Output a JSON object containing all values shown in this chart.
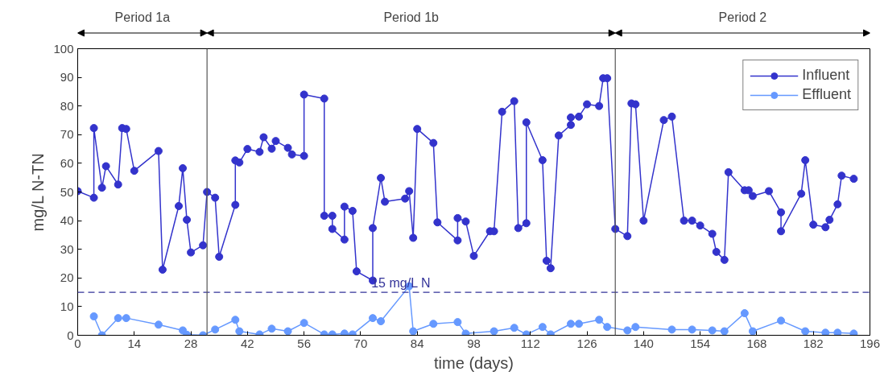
{
  "chart_data": {
    "type": "line",
    "xlabel": "time (days)",
    "ylabel": "mg/L N-TN",
    "series": [
      {
        "name": "Influent",
        "color": "#3333cc",
        "x": [
          0,
          4,
          4,
          6,
          7,
          10,
          11,
          12,
          14,
          20,
          21,
          25,
          26,
          27,
          28,
          31,
          32,
          34,
          35,
          39,
          39,
          40,
          42,
          45,
          46,
          48,
          49,
          52,
          53,
          56,
          56,
          61,
          61,
          63,
          63,
          66,
          66,
          68,
          69,
          73,
          73,
          75,
          76,
          81,
          82,
          83,
          84,
          88,
          89,
          94,
          94,
          96,
          98,
          102,
          103,
          105,
          108,
          109,
          111,
          111,
          115,
          116,
          117,
          119,
          122,
          122,
          124,
          126,
          129,
          130,
          131,
          133,
          136,
          137,
          138,
          140,
          145,
          147,
          150,
          152,
          154,
          157,
          158,
          160,
          161,
          165,
          166,
          167,
          171,
          174,
          174,
          179,
          180,
          182,
          185,
          186,
          188,
          189,
          192
        ],
        "values": [
          50.3,
          48,
          72.3,
          51.5,
          59,
          52.6,
          72.3,
          72,
          57.4,
          64.3,
          22.9,
          45.1,
          58.3,
          40.3,
          28.9,
          31.4,
          50,
          48,
          27.4,
          45.5,
          61,
          60.3,
          65,
          64,
          69.1,
          65.1,
          67.8,
          65.4,
          63.1,
          62.6,
          84,
          82.6,
          41.7,
          41.7,
          37.1,
          33.4,
          44.9,
          43.4,
          22.3,
          19.1,
          37.4,
          54.9,
          46.6,
          47.7,
          50.3,
          34,
          72,
          67.1,
          39.4,
          33.1,
          40.9,
          39.7,
          27.7,
          36.3,
          36.3,
          78,
          81.7,
          37.4,
          39.1,
          74.3,
          61.1,
          26,
          23.4,
          69.7,
          73.4,
          76,
          76.3,
          80.6,
          80,
          89.7,
          89.7,
          37.1,
          34.6,
          80.9,
          80.6,
          40,
          75.1,
          76.3,
          40,
          40,
          38.3,
          35.4,
          29.1,
          26.3,
          56.9,
          50.6,
          50.6,
          48.6,
          50.3,
          42.9,
          36.3,
          49.4,
          61.1,
          38.6,
          37.7,
          40.3,
          45.7,
          55.7,
          54.6
        ]
      },
      {
        "name": "Effluent",
        "color": "#6699ff",
        "x": [
          4,
          6,
          10,
          12,
          20,
          26,
          27,
          31,
          34,
          39,
          40,
          45,
          48,
          52,
          56,
          61,
          63,
          66,
          68,
          73,
          75,
          82,
          83,
          88,
          94,
          96,
          103,
          108,
          111,
          115,
          117,
          122,
          124,
          129,
          131,
          136,
          138,
          147,
          152,
          157,
          160,
          165,
          167,
          174,
          180,
          185,
          188,
          192
        ],
        "values": [
          6.6,
          0,
          6,
          6,
          3.7,
          1.7,
          0.2,
          0,
          2,
          5.4,
          1.4,
          0.3,
          2.3,
          1.4,
          4.3,
          0.3,
          0.3,
          0.6,
          0.3,
          6,
          4.9,
          17.1,
          1.4,
          4,
          4.6,
          0.6,
          1.4,
          2.6,
          0.3,
          2.9,
          0.3,
          4,
          4,
          5.4,
          2.9,
          1.7,
          2.9,
          2,
          2,
          1.7,
          1.4,
          7.7,
          1.4,
          5.1,
          1.4,
          0.9,
          0.9,
          0.6
        ]
      }
    ],
    "xlim": [
      0,
      196
    ],
    "xticks": [
      0,
      14,
      28,
      42,
      56,
      70,
      84,
      98,
      112,
      126,
      140,
      154,
      168,
      182,
      196
    ],
    "ylim": [
      0,
      100
    ],
    "yticks": [
      0,
      10,
      20,
      30,
      40,
      50,
      60,
      70,
      80,
      90,
      100
    ],
    "ref_lines": [
      {
        "axis": "y",
        "value": 15,
        "label": "15 mg/L N",
        "color": "#333399",
        "line_style": "dashed"
      },
      {
        "axis": "x",
        "value": 32,
        "color": "#555555",
        "line_style": "solid"
      },
      {
        "axis": "x",
        "value": 133,
        "color": "#555555",
        "line_style": "solid"
      }
    ],
    "annotations": [
      "Period 1a",
      "Period 1b",
      "Period 2"
    ],
    "marker": "circle",
    "line_style": "solid",
    "grid": false,
    "legend": "top right"
  }
}
